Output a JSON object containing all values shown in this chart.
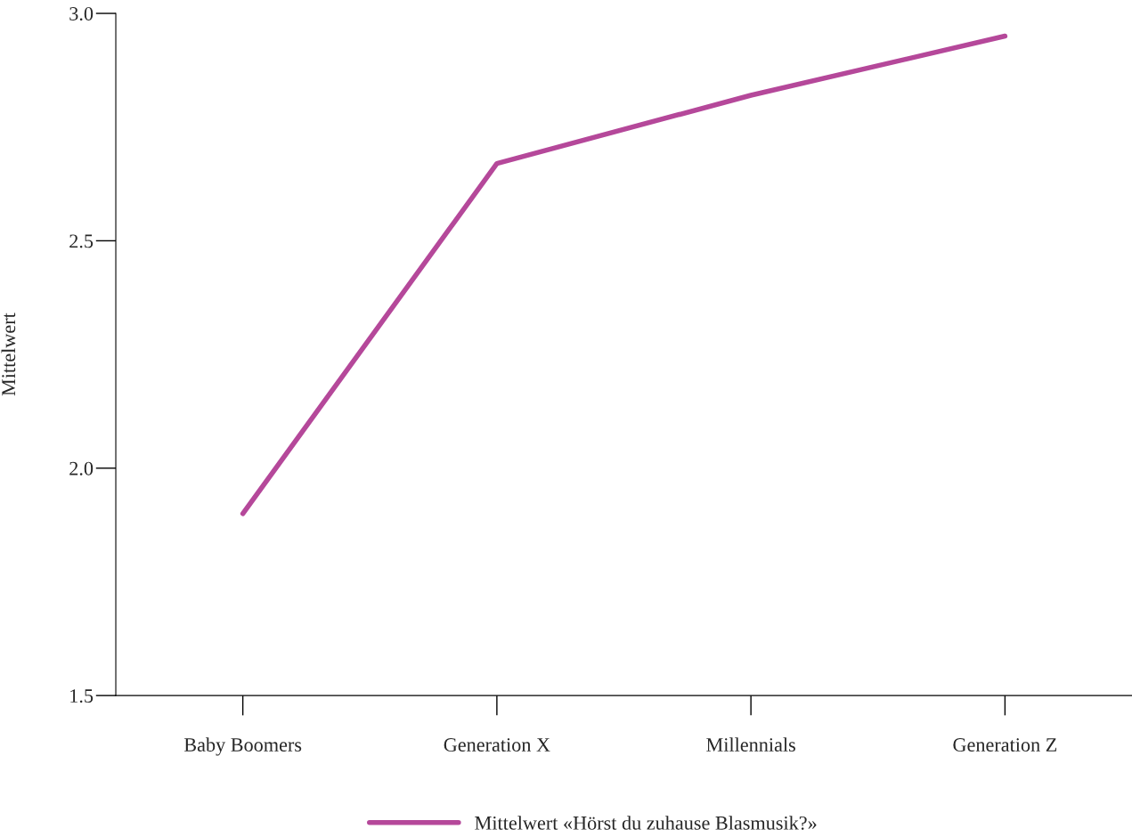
{
  "chart_data": {
    "type": "line",
    "ylabel": "Mittelwert",
    "categories": [
      "Baby Boomers",
      "Generation X",
      "Millennials",
      "Generation Z"
    ],
    "series": [
      {
        "name": "Mittelwert «Hörst du zuhause Blasmusik?»",
        "color": "#b5489a",
        "values": [
          1.9,
          2.67,
          2.82,
          2.95
        ]
      }
    ],
    "ylim": [
      1.5,
      3.0
    ],
    "yticks": [
      1.5,
      {
        "value": 2,
        "label": "2.0"
      },
      2.5,
      {
        "value": 3,
        "label": "3.0"
      }
    ],
    "grid": false,
    "legend": "bottom",
    "marker": "none",
    "line_style": "solid"
  }
}
